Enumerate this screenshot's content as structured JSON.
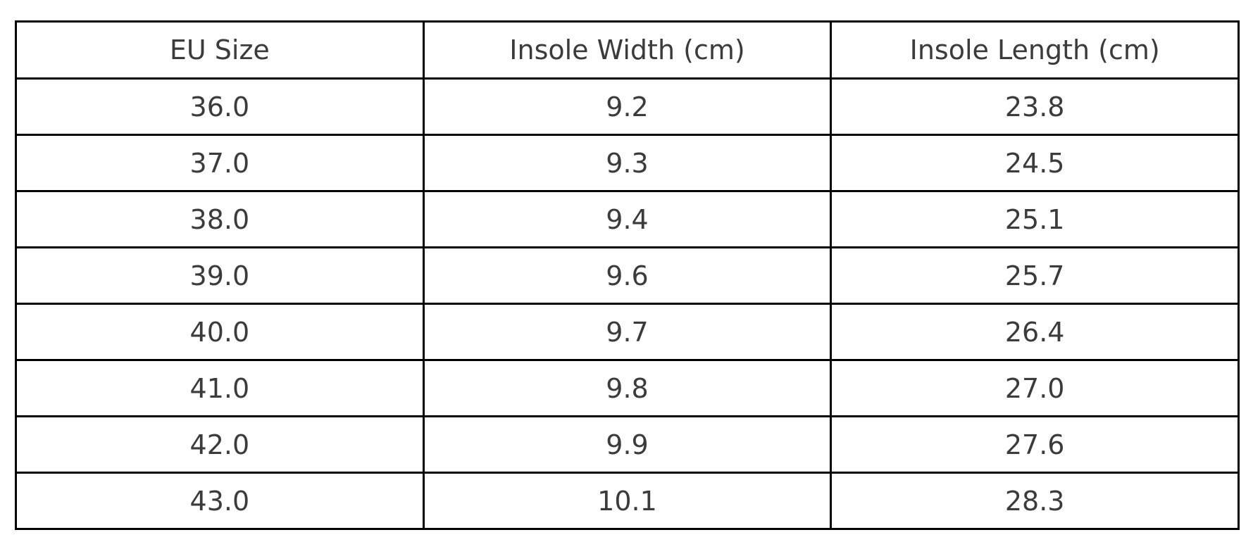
{
  "colors": {
    "background": "#ffffff",
    "grid_border": "#000000",
    "text": "#3b3b3b"
  },
  "table": {
    "columns": [
      "EU Size",
      "Insole Width (cm)",
      "Insole Length (cm)"
    ],
    "rows": [
      [
        "36.0",
        "9.2",
        "23.8"
      ],
      [
        "37.0",
        "9.3",
        "24.5"
      ],
      [
        "38.0",
        "9.4",
        "25.1"
      ],
      [
        "39.0",
        "9.6",
        "25.7"
      ],
      [
        "40.0",
        "9.7",
        "26.4"
      ],
      [
        "41.0",
        "9.8",
        "27.0"
      ],
      [
        "42.0",
        "9.9",
        "27.6"
      ],
      [
        "43.0",
        "10.1",
        "28.3"
      ]
    ]
  },
  "chart_data": {
    "type": "table",
    "title": "",
    "columns": [
      "EU Size",
      "Insole Width (cm)",
      "Insole Length (cm)"
    ],
    "rows": [
      [
        36.0,
        9.2,
        23.8
      ],
      [
        37.0,
        9.3,
        24.5
      ],
      [
        38.0,
        9.4,
        25.1
      ],
      [
        39.0,
        9.6,
        25.7
      ],
      [
        40.0,
        9.7,
        26.4
      ],
      [
        41.0,
        9.8,
        27.0
      ],
      [
        42.0,
        9.9,
        27.6
      ],
      [
        43.0,
        10.1,
        28.3
      ]
    ],
    "layout_hints": {
      "grid": "on",
      "header_row": true,
      "cell_alignment": "center",
      "equal_column_widths": true
    }
  }
}
